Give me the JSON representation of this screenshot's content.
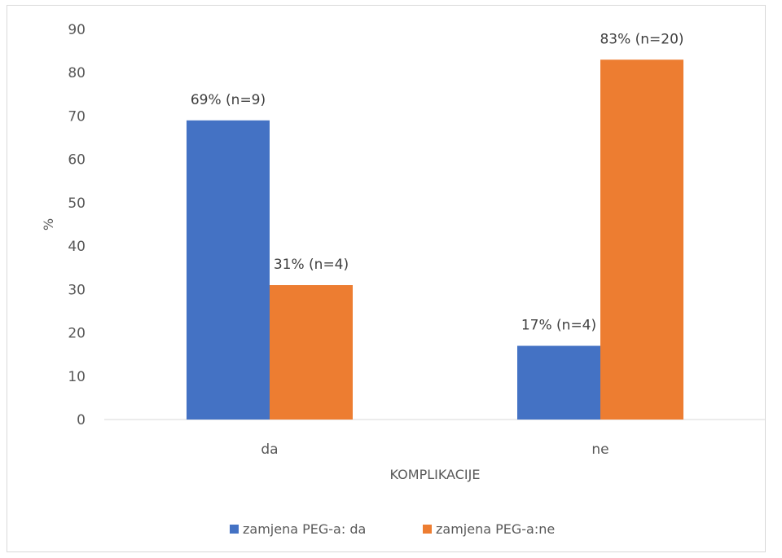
{
  "chart_data": {
    "type": "bar",
    "categories": [
      "da",
      "ne"
    ],
    "series": [
      {
        "name": "zamjena PEG-a: da",
        "values": [
          69,
          17
        ],
        "labels": [
          "69% (n=9)",
          "17% (n=4)"
        ],
        "color": "#4472c4"
      },
      {
        "name": "zamjena PEG-a:ne",
        "values": [
          31,
          83
        ],
        "labels": [
          "31% (n=4)",
          "83% (n=20)"
        ],
        "color": "#ed7d31"
      }
    ],
    "xlabel": "KOMPLIKACIJE",
    "ylabel": "%",
    "ylim": [
      0,
      90
    ],
    "yticks": [
      0,
      10,
      20,
      30,
      40,
      50,
      60,
      70,
      80,
      90
    ],
    "grid": false,
    "legend": "bottom"
  }
}
